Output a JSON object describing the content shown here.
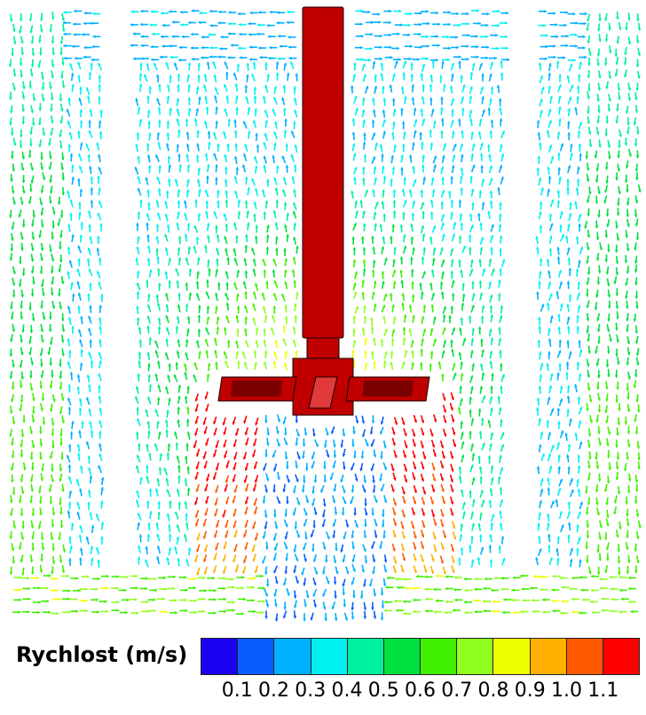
{
  "legend": {
    "title": "Rychlost (m/s)",
    "ticks": [
      "0.1",
      "0.2",
      "0.3",
      "0.4",
      "0.5",
      "0.6",
      "0.7",
      "0.8",
      "0.9",
      "1.0",
      "1.1"
    ],
    "colors": [
      "#1a00f0",
      "#0a5cff",
      "#00b0ff",
      "#00f0f0",
      "#00f0a0",
      "#00e040",
      "#40f000",
      "#90ff20",
      "#f0ff00",
      "#ffb000",
      "#ff5a00",
      "#ff0000"
    ]
  },
  "colors": {
    "impeller": "#c00000",
    "impeller_dark": "#7a0000",
    "impeller_light": "#e03a3a",
    "outline": "#1a0000"
  }
}
